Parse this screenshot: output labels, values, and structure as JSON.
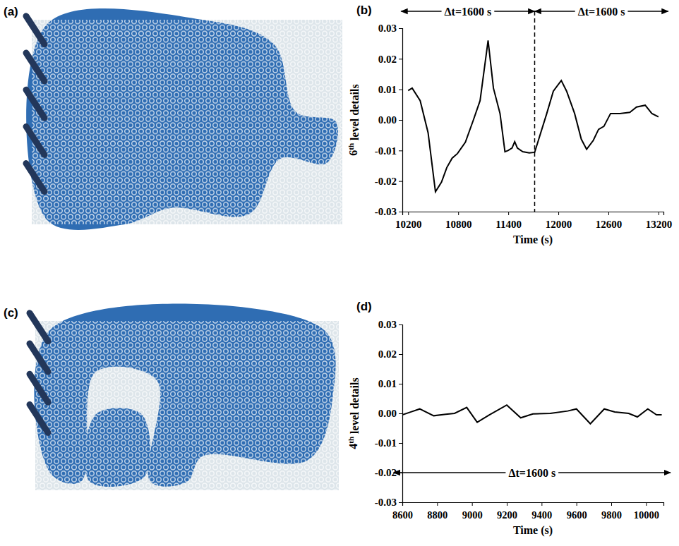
{
  "images": [
    {
      "panel_label": "(a)"
    },
    {
      "panel_label": "(c)"
    }
  ],
  "chart_data": [
    {
      "type": "line",
      "panel_label": "(b)",
      "x_label": "Time (s)",
      "y_label": "6th level details",
      "color": "#000000",
      "line_style": "solid",
      "xlim": [
        10130,
        13260
      ],
      "ylim": [
        -0.03,
        0.03
      ],
      "xticks": [
        10200,
        10800,
        11400,
        12000,
        12600,
        13200
      ],
      "yticks": [
        -0.03,
        -0.02,
        -0.01,
        {
          "value": 0,
          "label": "0.00"
        },
        0.01,
        0.02,
        0.03
      ],
      "x": [
        10200,
        10248,
        10344,
        10439,
        10527,
        10599,
        10663,
        10727,
        10791,
        10886,
        10982,
        11062,
        11158,
        11222,
        11301,
        11360,
        11397,
        11445,
        11477,
        11509,
        11573,
        11652,
        11716,
        11860,
        11940,
        12035,
        12099,
        12195,
        12275,
        12339,
        12419,
        12482,
        12546,
        12626,
        12738,
        12857,
        12937,
        13041,
        13121,
        13200
      ],
      "values": [
        0.0096,
        0.0104,
        0.0063,
        -0.0042,
        -0.0235,
        -0.0204,
        -0.0156,
        -0.0125,
        -0.011,
        -0.0073,
        0.0,
        0.0063,
        0.026,
        0.0104,
        0.0021,
        -0.0104,
        -0.01,
        -0.0092,
        -0.0071,
        -0.0092,
        -0.0104,
        -0.0108,
        -0.0106,
        0.002,
        0.0094,
        0.0129,
        0.0094,
        0.0021,
        -0.0063,
        -0.0096,
        -0.0067,
        -0.0031,
        -0.0021,
        0.0021,
        0.0021,
        0.0025,
        0.0042,
        0.0048,
        0.0021,
        0.001
      ],
      "vlines": [
        {
          "x": 11716,
          "line_style": "dashed"
        }
      ],
      "annotations": [
        {
          "text": "Δt=1600 s",
          "x0": 10116,
          "x1": 11716
        },
        {
          "text": "Δt=1600 s",
          "x0": 11716,
          "x1": 13316
        }
      ]
    },
    {
      "type": "line",
      "panel_label": "(d)",
      "x_label": "Time (s)",
      "y_label": "4th level details",
      "color": "#000000",
      "line_style": "solid",
      "xlim": [
        8600,
        10100
      ],
      "ylim": [
        -0.03,
        0.03
      ],
      "xticks": [
        8600,
        8800,
        9000,
        9200,
        9400,
        9600,
        9800,
        10000
      ],
      "yticks": [
        -0.03,
        -0.02,
        -0.01,
        {
          "value": 0,
          "label": "0.00"
        },
        0.01,
        0.02,
        0.03
      ],
      "x": [
        8600,
        8650,
        8700,
        8780,
        8850,
        8900,
        8970,
        9030,
        9100,
        9200,
        9280,
        9350,
        9450,
        9550,
        9600,
        9680,
        9760,
        9820,
        9900,
        9950,
        10010,
        10060,
        10090
      ],
      "values": [
        -0.0005,
        0.0005,
        0.0015,
        -0.0008,
        -0.0003,
        0.0,
        0.002,
        -0.003,
        -0.0005,
        0.0028,
        -0.0015,
        -0.0002,
        0.0,
        0.0008,
        0.0015,
        -0.0035,
        0.0015,
        0.0005,
        0.0,
        -0.0012,
        0.0015,
        -0.0005,
        -0.0005
      ],
      "annotations": [
        {
          "text": "Δt=1600 s",
          "x0": 8550,
          "x1": 10140,
          "y": -0.02
        }
      ]
    }
  ]
}
